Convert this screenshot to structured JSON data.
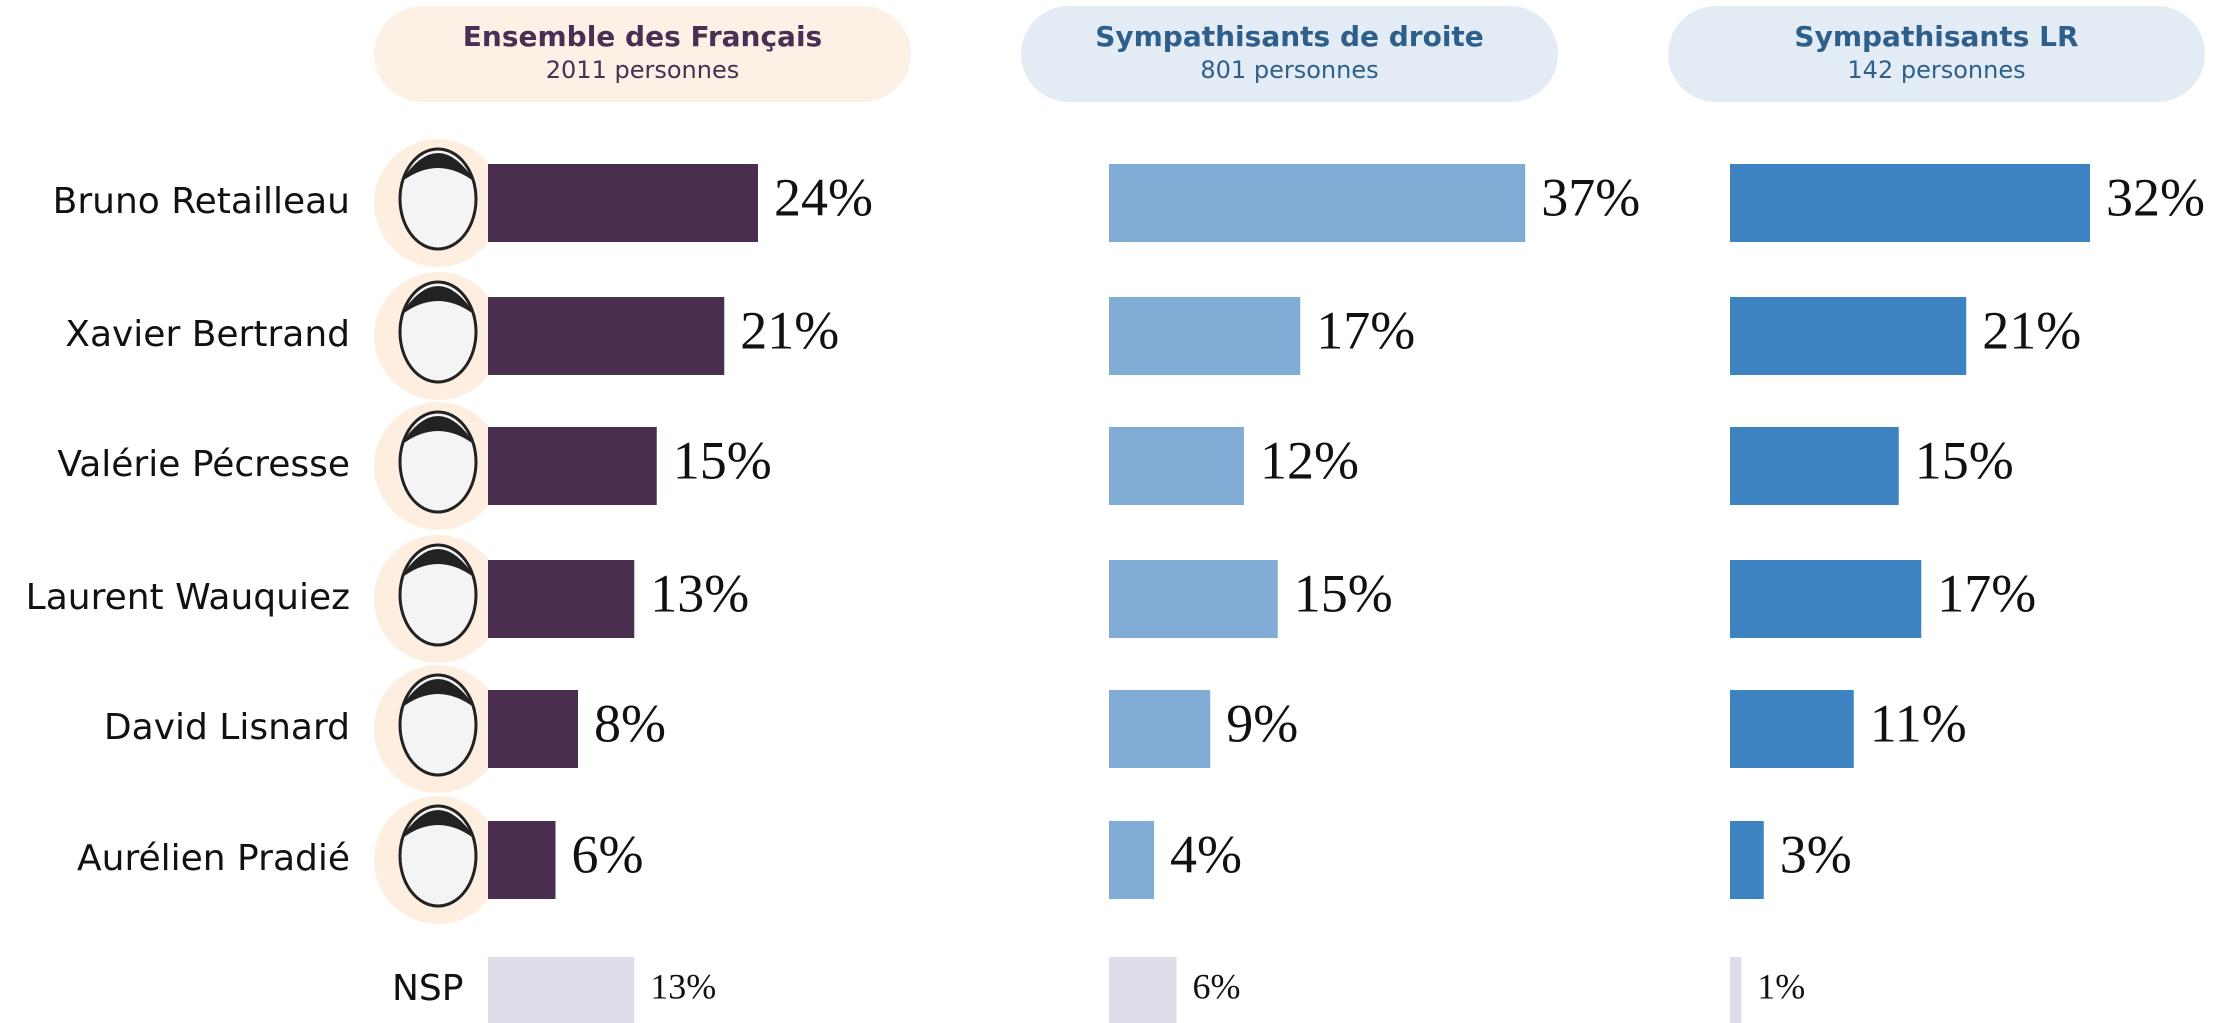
{
  "chart_data": {
    "type": "bar",
    "orientation": "horizontal",
    "categories": [
      "Bruno Retailleau",
      "Xavier Bertrand",
      "Valérie Pécresse",
      "Laurent Wauquiez",
      "David Lisnard",
      "Aurélien Pradié",
      "NSP"
    ],
    "last_category_color": "#dcdde9",
    "series": [
      {
        "name": "Ensemble des Français",
        "subtitle": "2011 personnes",
        "color": "#4a2e4f",
        "header_color": "#fdf1e6",
        "title_color": "#4a2f55",
        "values": [
          24,
          21,
          15,
          13,
          8,
          6,
          13
        ],
        "value_labels": [
          "24%",
          "21%",
          "15%",
          "13%",
          "8%",
          "6%",
          "13%"
        ]
      },
      {
        "name": "Sympathisants de droite",
        "subtitle": "801 personnes",
        "color": "#80acd6",
        "header_color": "#e3ecf5",
        "title_color": "#2e5f8a",
        "values": [
          37,
          17,
          12,
          15,
          9,
          4,
          6
        ],
        "value_labels": [
          "37%",
          "17%",
          "12%",
          "15%",
          "9%",
          "4%",
          "6%"
        ]
      },
      {
        "name": "Sympathisants LR",
        "subtitle": "142 personnes",
        "color": "#3d82c1",
        "header_color": "#e3ecf5",
        "title_color": "#2e5f8a",
        "values": [
          32,
          21,
          15,
          17,
          11,
          3,
          1
        ],
        "value_labels": [
          "32%",
          "21%",
          "15%",
          "17%",
          "11%",
          "3%",
          "1%"
        ]
      }
    ]
  }
}
